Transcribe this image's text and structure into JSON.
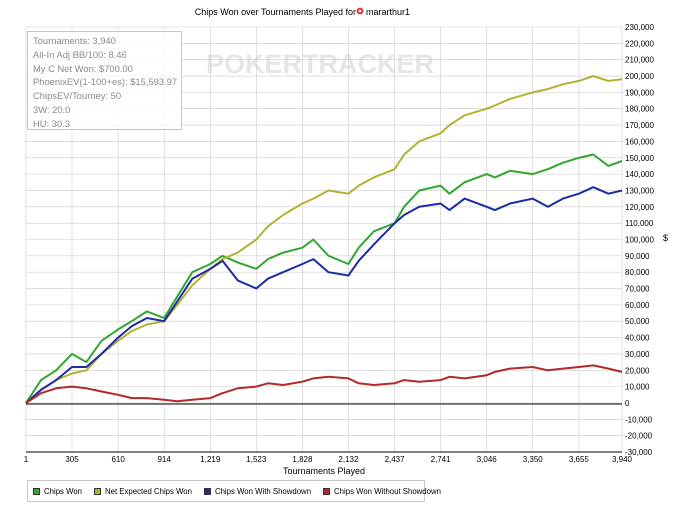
{
  "chart_data": {
    "type": "line",
    "title": "Chips Won over Tournaments Played for",
    "player_name": "mararthur1",
    "xlabel": "Tournaments Played",
    "ylabel": "",
    "x_ticks": [
      "1",
      "305",
      "610",
      "914",
      "1,219",
      "1,523",
      "1,828",
      "2,132",
      "2,437",
      "2,741",
      "3,046",
      "3,350",
      "3,655",
      "3,940"
    ],
    "y_ticks": [
      "230,000",
      "220,000",
      "210,000",
      "200,000",
      "190,000",
      "180,000",
      "170,000",
      "160,000",
      "150,000",
      "140,000",
      "130,000",
      "120,000",
      "110,000",
      "100,000",
      "90,000",
      "80,000",
      "70,000",
      "60,000",
      "50,000",
      "40,000",
      "30,000",
      "20,000",
      "10,000",
      "0",
      "-10,000",
      "-20,000",
      "-30,000"
    ],
    "xlim": [
      1,
      3940
    ],
    "ylim": [
      -30000,
      230000
    ],
    "legend_position": "bottom-left",
    "series": [
      {
        "name": "Chips Won",
        "color": "#33a532",
        "x": [
          1,
          100,
          200,
          305,
          400,
          500,
          610,
          700,
          800,
          914,
          1000,
          1100,
          1219,
          1300,
          1400,
          1523,
          1600,
          1700,
          1828,
          1900,
          2000,
          2132,
          2200,
          2300,
          2437,
          2500,
          2600,
          2741,
          2800,
          2900,
          3046,
          3100,
          3200,
          3350,
          3450,
          3550,
          3655,
          3750,
          3850,
          3940
        ],
        "y": [
          0,
          14000,
          20000,
          30000,
          25000,
          38000,
          45000,
          50000,
          56000,
          52000,
          65000,
          80000,
          85000,
          90000,
          86000,
          82000,
          88000,
          92000,
          95000,
          100000,
          90000,
          85000,
          95000,
          105000,
          110000,
          120000,
          130000,
          133000,
          128000,
          135000,
          140000,
          138000,
          142000,
          140000,
          143000,
          147000,
          150000,
          152000,
          145000,
          148000
        ]
      },
      {
        "name": "Net Expected Chips Won",
        "color": "#b2b232",
        "x": [
          1,
          100,
          200,
          305,
          400,
          500,
          610,
          700,
          800,
          914,
          1000,
          1100,
          1219,
          1300,
          1400,
          1523,
          1600,
          1700,
          1828,
          1900,
          2000,
          2132,
          2200,
          2300,
          2437,
          2500,
          2600,
          2741,
          2800,
          2900,
          3046,
          3100,
          3200,
          3350,
          3450,
          3550,
          3655,
          3750,
          3850,
          3940
        ],
        "y": [
          0,
          8000,
          14000,
          18000,
          20000,
          30000,
          38000,
          44000,
          48000,
          50000,
          60000,
          72000,
          82000,
          88000,
          92000,
          100000,
          108000,
          115000,
          122000,
          125000,
          130000,
          128000,
          133000,
          138000,
          143000,
          152000,
          160000,
          165000,
          170000,
          176000,
          180000,
          182000,
          186000,
          190000,
          192000,
          195000,
          197000,
          200000,
          197000,
          198000
        ]
      },
      {
        "name": "Chips Won With Showdown",
        "color": "#1c2ba6",
        "x": [
          1,
          100,
          200,
          305,
          400,
          500,
          610,
          700,
          800,
          914,
          1000,
          1100,
          1219,
          1300,
          1400,
          1523,
          1600,
          1700,
          1828,
          1900,
          2000,
          2132,
          2200,
          2300,
          2437,
          2500,
          2600,
          2741,
          2800,
          2900,
          3046,
          3100,
          3200,
          3350,
          3450,
          3550,
          3655,
          3750,
          3850,
          3940
        ],
        "y": [
          0,
          8000,
          14000,
          22000,
          22000,
          30000,
          40000,
          47000,
          52000,
          50000,
          62000,
          76000,
          82000,
          87000,
          75000,
          70000,
          76000,
          80000,
          85000,
          88000,
          80000,
          78000,
          87000,
          97000,
          110000,
          115000,
          120000,
          122000,
          118000,
          125000,
          120000,
          118000,
          122000,
          125000,
          120000,
          125000,
          128000,
          132000,
          128000,
          130000
        ]
      },
      {
        "name": "Chips Won Without Showdown",
        "color": "#b2292a",
        "x": [
          1,
          100,
          200,
          305,
          400,
          500,
          610,
          700,
          800,
          914,
          1000,
          1100,
          1219,
          1300,
          1400,
          1523,
          1600,
          1700,
          1828,
          1900,
          2000,
          2132,
          2200,
          2300,
          2437,
          2500,
          2600,
          2741,
          2800,
          2900,
          3046,
          3100,
          3200,
          3350,
          3450,
          3550,
          3655,
          3750,
          3850,
          3940
        ],
        "y": [
          0,
          6000,
          9000,
          10000,
          9000,
          7000,
          5000,
          3000,
          3000,
          2000,
          1000,
          2000,
          3000,
          6000,
          9000,
          10000,
          12000,
          11000,
          13000,
          15000,
          16000,
          15000,
          12000,
          11000,
          12000,
          14000,
          13000,
          14000,
          16000,
          15000,
          17000,
          19000,
          21000,
          22000,
          20000,
          21000,
          22000,
          23000,
          21000,
          19000
        ]
      }
    ]
  },
  "stats": {
    "tournaments": "Tournaments: 3,940",
    "allin_bb": "All-In Adj BB/100: 8.46",
    "my_c_net_won": "My C Net Won: $700.00",
    "phoenix_ev": "PhoenixEV(1-100+es): $15,593.97",
    "chips_ev": "ChipsEV/Tourney: 50",
    "three_w": "3W: 20.0",
    "hu": "HU: 30.3"
  },
  "watermark": "POKERTRACKER",
  "colors": {
    "gridline": "#cccccc",
    "watermark": "#e6e6e6",
    "stats_text": "#8a8a8a"
  }
}
